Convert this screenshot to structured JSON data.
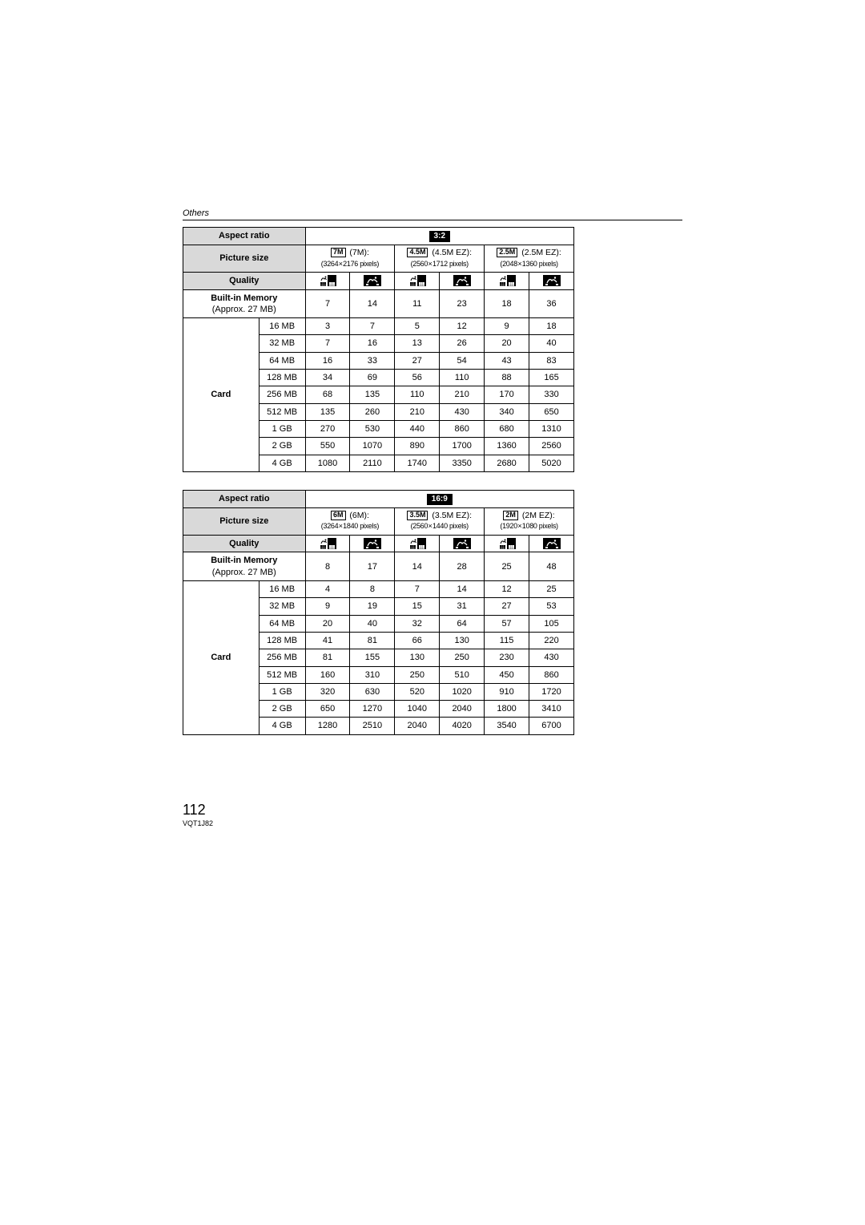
{
  "header": {
    "section": "Others"
  },
  "footer": {
    "pageNumber": "112",
    "code": "VQT1J82"
  },
  "labels": {
    "aspectRatio": "Aspect ratio",
    "pictureSize": "Picture size",
    "quality": "Quality",
    "builtInMemoryBold": "Built-in Memory",
    "builtInMemorySub": "(Approx. 27 MB)",
    "card": "Card"
  },
  "tables": [
    {
      "aspectRatio": "3:2",
      "pictureSizes": [
        {
          "badge": "7M",
          "title": "(7M):",
          "dims": "(3264   2176 pixels)"
        },
        {
          "badge": "4.5M",
          "title": "(4.5M EZ):",
          "dims": "(2560   1712 pixels)"
        },
        {
          "badge": "2.5M",
          "title": "(2.5M EZ):",
          "dims": "(2048   1360 pixels)"
        }
      ],
      "builtIn": [
        "7",
        "14",
        "11",
        "23",
        "18",
        "36"
      ],
      "capacities": [
        "16 MB",
        "32 MB",
        "64 MB",
        "128 MB",
        "256 MB",
        "512 MB",
        "1 GB",
        "2 GB",
        "4 GB"
      ],
      "rows": [
        [
          "3",
          "7",
          "5",
          "12",
          "9",
          "18"
        ],
        [
          "7",
          "16",
          "13",
          "26",
          "20",
          "40"
        ],
        [
          "16",
          "33",
          "27",
          "54",
          "43",
          "83"
        ],
        [
          "34",
          "69",
          "56",
          "110",
          "88",
          "165"
        ],
        [
          "68",
          "135",
          "110",
          "210",
          "170",
          "330"
        ],
        [
          "135",
          "260",
          "210",
          "430",
          "340",
          "650"
        ],
        [
          "270",
          "530",
          "440",
          "860",
          "680",
          "1310"
        ],
        [
          "550",
          "1070",
          "890",
          "1700",
          "1360",
          "2560"
        ],
        [
          "1080",
          "2110",
          "1740",
          "3350",
          "2680",
          "5020"
        ]
      ]
    },
    {
      "aspectRatio": "16:9",
      "pictureSizes": [
        {
          "badge": "6M",
          "title": "(6M):",
          "dims": "(3264   1840 pixels)"
        },
        {
          "badge": "3.5M",
          "title": "(3.5M EZ):",
          "dims": "(2560   1440 pixels)"
        },
        {
          "badge": "2M",
          "title": "(2M EZ):",
          "dims": "(1920   1080 pixels)"
        }
      ],
      "builtIn": [
        "8",
        "17",
        "14",
        "28",
        "25",
        "48"
      ],
      "capacities": [
        "16 MB",
        "32 MB",
        "64 MB",
        "128 MB",
        "256 MB",
        "512 MB",
        "1 GB",
        "2 GB",
        "4 GB"
      ],
      "rows": [
        [
          "4",
          "8",
          "7",
          "14",
          "12",
          "25"
        ],
        [
          "9",
          "19",
          "15",
          "31",
          "27",
          "53"
        ],
        [
          "20",
          "40",
          "32",
          "64",
          "57",
          "105"
        ],
        [
          "41",
          "81",
          "66",
          "130",
          "115",
          "220"
        ],
        [
          "81",
          "155",
          "130",
          "250",
          "230",
          "430"
        ],
        [
          "160",
          "310",
          "250",
          "510",
          "450",
          "860"
        ],
        [
          "320",
          "630",
          "520",
          "1020",
          "910",
          "1720"
        ],
        [
          "650",
          "1270",
          "1040",
          "2040",
          "1800",
          "3410"
        ],
        [
          "1280",
          "2510",
          "2040",
          "4020",
          "3540",
          "6700"
        ]
      ]
    }
  ],
  "colors": {
    "headerBg": "#d9d9d9",
    "badgeBg": "#000000",
    "badgeFg": "#ffffff",
    "border": "#000000",
    "page": "#ffffff"
  }
}
